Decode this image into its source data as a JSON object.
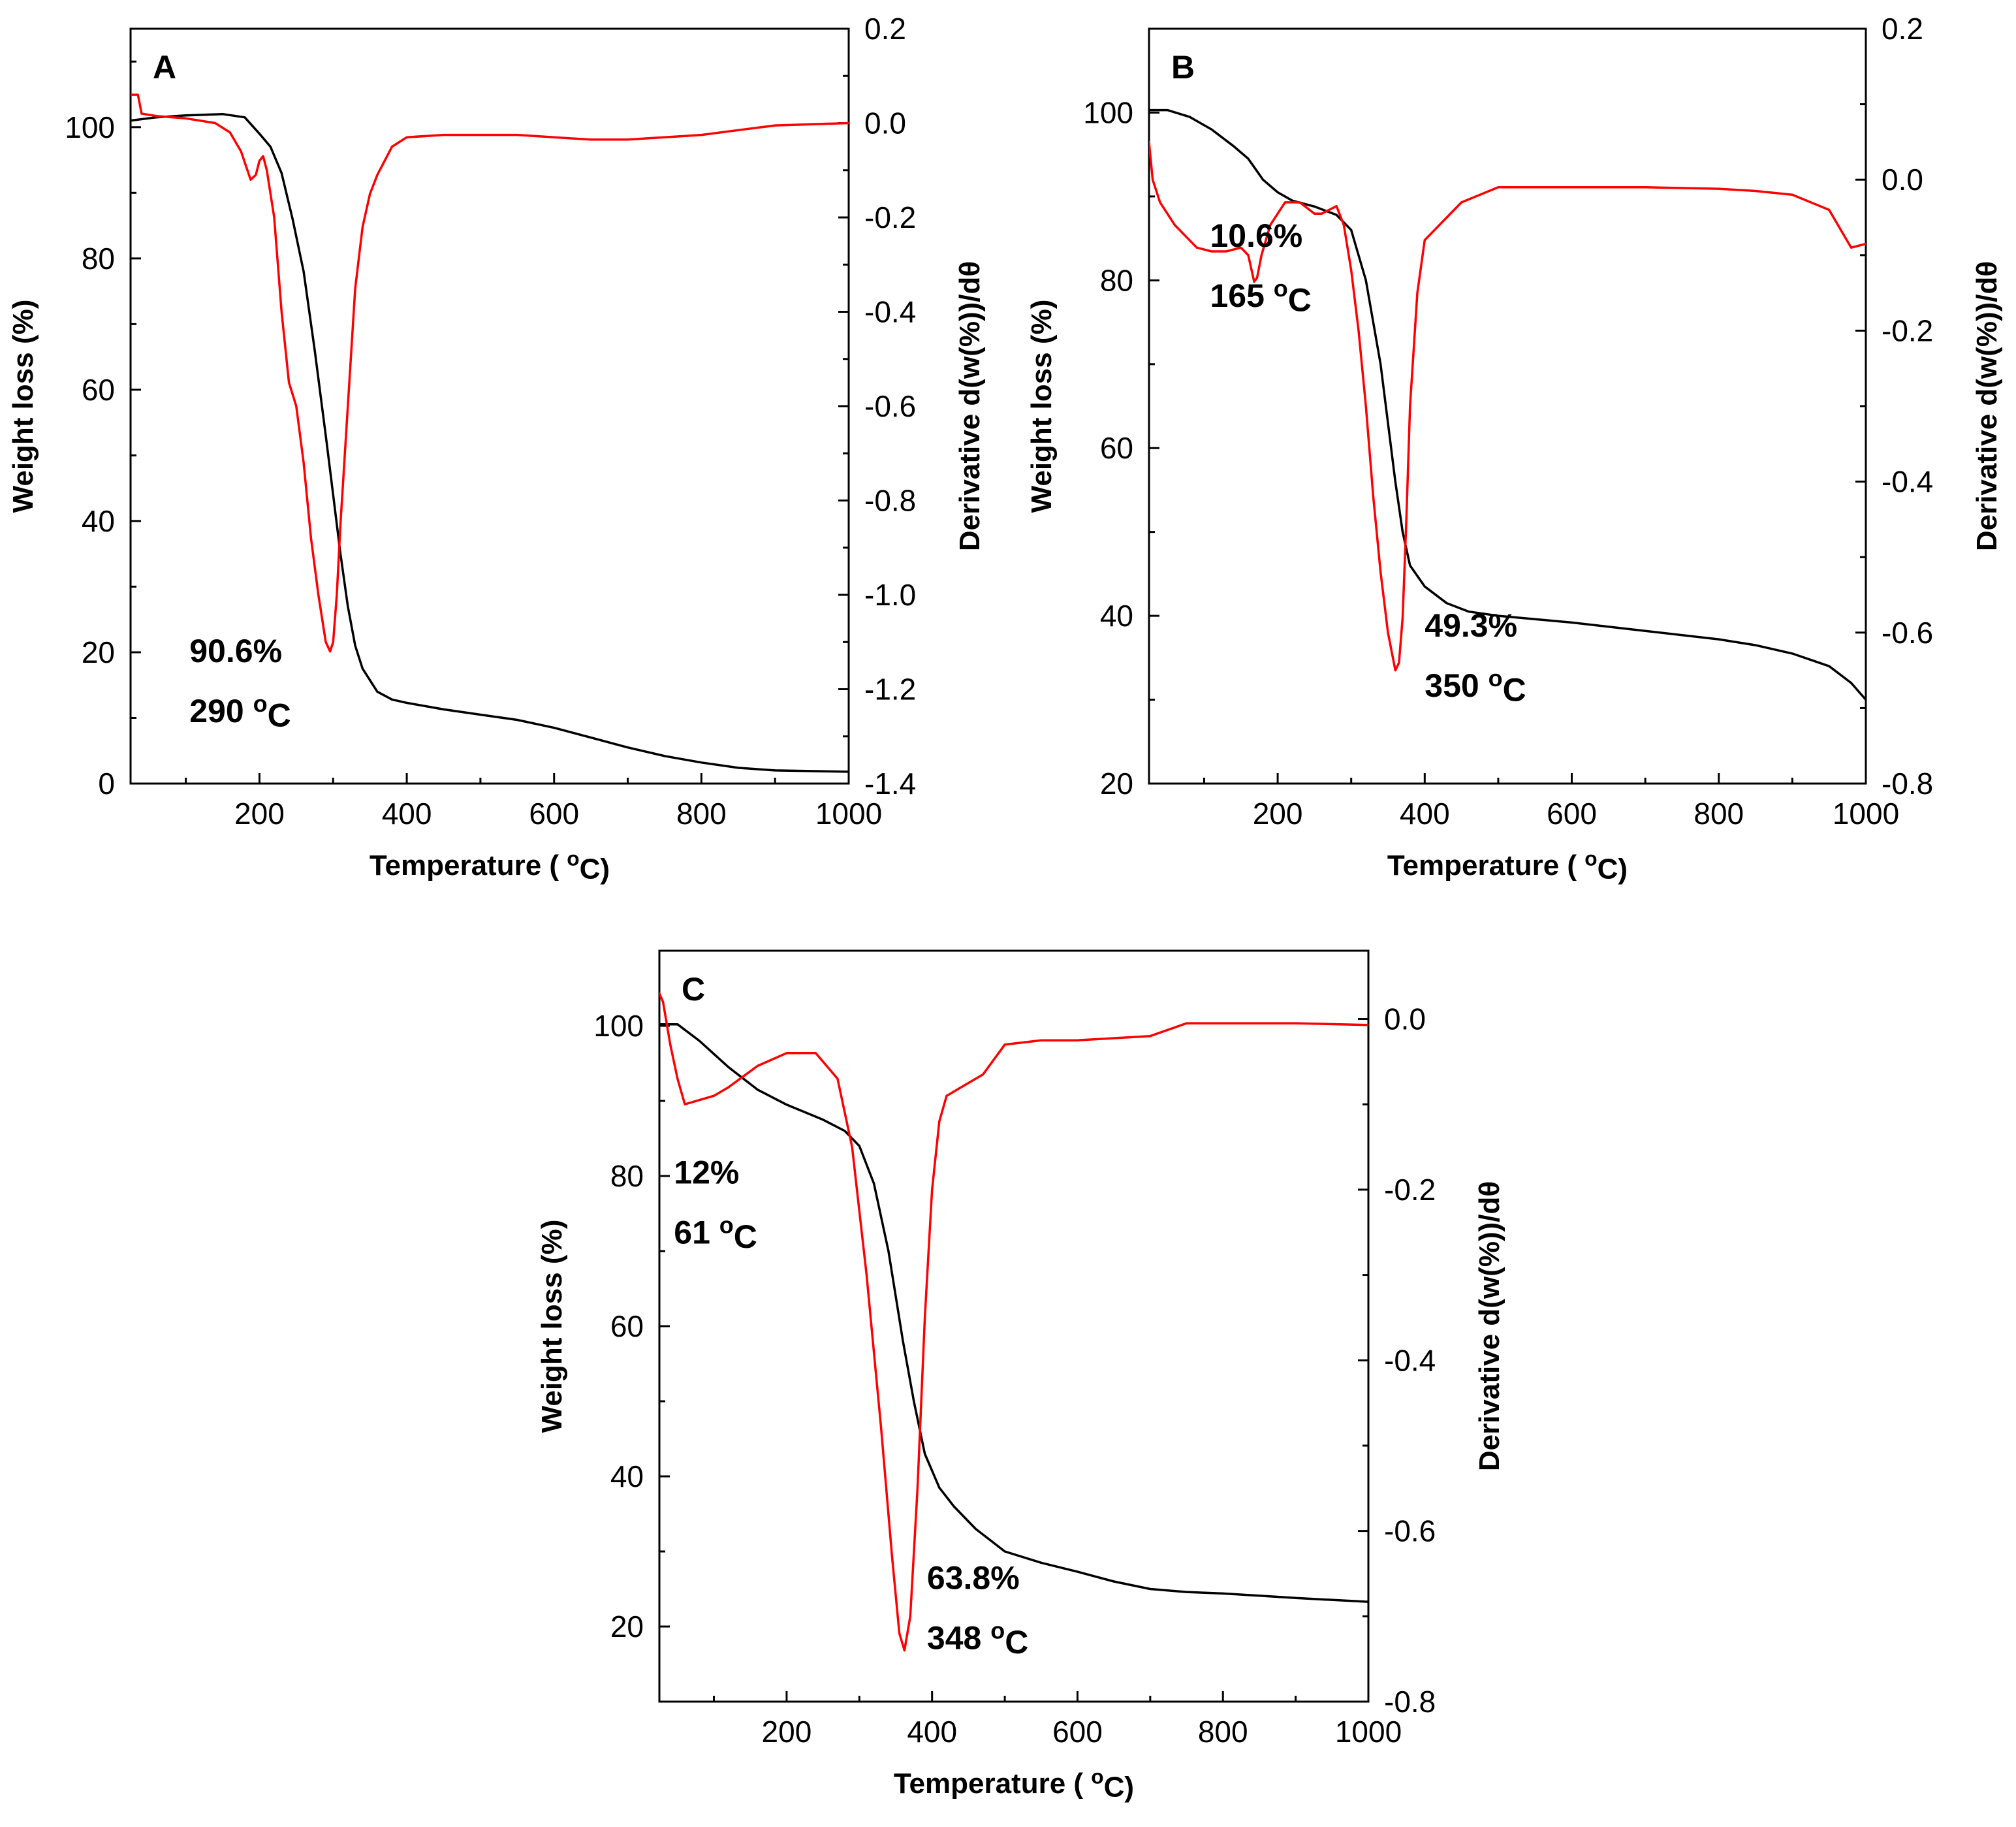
{
  "colors": {
    "weight": "#000000",
    "derivative": "#ff0000"
  },
  "chart_data": [
    {
      "panel": "A",
      "type": "line",
      "xlabel": "Temperature ( oC)",
      "ylabel_left": "Weight loss (%)",
      "ylabel_right": "Derivative d(w(%))/dθ",
      "xlim": [
        25,
        1000
      ],
      "ylim_left": [
        0,
        115
      ],
      "ylim_right": [
        -1.4,
        0.2
      ],
      "x_ticks": [
        200,
        400,
        600,
        800,
        1000
      ],
      "x_tick_labels": [
        "200",
        "400",
        "600",
        "800",
        "1000"
      ],
      "y_left_ticks": [
        0,
        20,
        40,
        60,
        80,
        100
      ],
      "y_left_tick_labels": [
        "0",
        "20",
        "40",
        "60",
        "80",
        "100"
      ],
      "y_right_ticks": [
        0.2,
        0.0,
        -0.2,
        -0.4,
        -0.6,
        -0.8,
        -1.0,
        -1.2,
        -1.4
      ],
      "y_right_tick_labels": [
        "0.2",
        "0.0",
        "-0.2",
        "-0.4",
        "-0.6",
        "-0.8",
        "-1.0",
        "-1.2",
        "-1.4"
      ],
      "annotations": [
        {
          "lines": [
            "90.6%",
            "290 oC"
          ],
          "x": 105,
          "y": 18.5
        }
      ],
      "series": [
        {
          "name": "Weight loss",
          "axis": "left",
          "color": "#000000",
          "x": [
            25,
            60,
            100,
            150,
            180,
            200,
            215,
            230,
            245,
            260,
            275,
            290,
            300,
            310,
            320,
            330,
            340,
            360,
            380,
            400,
            450,
            500,
            550,
            600,
            650,
            700,
            750,
            800,
            850,
            900,
            1000
          ],
          "y": [
            101,
            101.5,
            101.8,
            102,
            101.5,
            99,
            97,
            93,
            86,
            78,
            66,
            53,
            44,
            35,
            27,
            21,
            17.5,
            14,
            12.8,
            12.3,
            11.3,
            10.5,
            9.7,
            8.5,
            7,
            5.5,
            4.2,
            3.2,
            2.4,
            2.0,
            1.8
          ]
        },
        {
          "name": "Derivative",
          "axis": "right",
          "color": "#ff0000",
          "x": [
            25,
            35,
            40,
            60,
            100,
            140,
            160,
            175,
            188,
            195,
            200,
            205,
            210,
            220,
            230,
            240,
            250,
            260,
            270,
            280,
            290,
            296,
            300,
            305,
            310,
            320,
            330,
            340,
            350,
            360,
            380,
            400,
            450,
            500,
            550,
            600,
            650,
            700,
            750,
            800,
            850,
            900,
            1000
          ],
          "y": [
            0.06,
            0.06,
            0.02,
            0.015,
            0.01,
            0.0,
            -0.02,
            -0.06,
            -0.12,
            -0.11,
            -0.08,
            -0.07,
            -0.1,
            -0.2,
            -0.4,
            -0.55,
            -0.6,
            -0.72,
            -0.88,
            -1.0,
            -1.1,
            -1.12,
            -1.1,
            -1.0,
            -0.85,
            -0.6,
            -0.35,
            -0.22,
            -0.15,
            -0.11,
            -0.05,
            -0.03,
            -0.025,
            -0.025,
            -0.025,
            -0.03,
            -0.035,
            -0.035,
            -0.03,
            -0.025,
            -0.015,
            -0.005,
            0.0
          ]
        }
      ]
    },
    {
      "panel": "B",
      "type": "line",
      "xlabel": "Temperature ( oC)",
      "ylabel_left": "Weight loss (%)",
      "ylabel_right": "Derivative d(w(%))/dθ",
      "xlim": [
        25,
        1000
      ],
      "ylim_left": [
        20,
        110
      ],
      "ylim_right": [
        -0.8,
        0.2
      ],
      "x_ticks": [
        200,
        400,
        600,
        800,
        1000
      ],
      "x_tick_labels": [
        "200",
        "400",
        "600",
        "800",
        "1000"
      ],
      "y_left_ticks": [
        20,
        40,
        60,
        80,
        100
      ],
      "y_left_tick_labels": [
        "20",
        "40",
        "60",
        "80",
        "100"
      ],
      "y_right_ticks": [
        0.2,
        0.0,
        -0.2,
        -0.4,
        -0.6,
        -0.8
      ],
      "y_right_tick_labels": [
        "0.2",
        "0.0",
        "-0.2",
        "-0.4",
        "-0.6",
        "-0.8"
      ],
      "annotations": [
        {
          "lines": [
            "10.6%",
            "165 oC"
          ],
          "x": 108,
          "y": 84
        },
        {
          "lines": [
            "49.3%",
            "350 oC"
          ],
          "x": 400,
          "y": 37.5
        }
      ],
      "series": [
        {
          "name": "Weight loss",
          "axis": "left",
          "color": "#000000",
          "x": [
            25,
            50,
            80,
            110,
            140,
            160,
            180,
            200,
            220,
            250,
            280,
            300,
            320,
            340,
            350,
            360,
            370,
            380,
            400,
            430,
            460,
            500,
            600,
            700,
            800,
            850,
            900,
            950,
            980,
            1000
          ],
          "y": [
            100.3,
            100.3,
            99.5,
            98,
            96,
            94.5,
            92,
            90.5,
            89.5,
            88.8,
            87.8,
            86,
            80,
            70,
            63,
            56,
            50,
            46,
            43.5,
            41.5,
            40.5,
            40,
            39.2,
            38.2,
            37.2,
            36.5,
            35.5,
            34,
            32,
            30
          ]
        },
        {
          "name": "Derivative",
          "axis": "right",
          "color": "#ff0000",
          "x": [
            25,
            30,
            40,
            60,
            90,
            110,
            130,
            150,
            160,
            168,
            172,
            178,
            190,
            210,
            230,
            250,
            260,
            270,
            280,
            290,
            300,
            310,
            320,
            330,
            340,
            350,
            360,
            365,
            370,
            375,
            380,
            390,
            400,
            420,
            450,
            500,
            550,
            600,
            700,
            800,
            850,
            900,
            950,
            980,
            1000
          ],
          "y": [
            0.05,
            0.0,
            -0.03,
            -0.06,
            -0.09,
            -0.095,
            -0.095,
            -0.09,
            -0.1,
            -0.135,
            -0.13,
            -0.1,
            -0.06,
            -0.03,
            -0.03,
            -0.045,
            -0.045,
            -0.04,
            -0.035,
            -0.06,
            -0.12,
            -0.2,
            -0.3,
            -0.42,
            -0.52,
            -0.6,
            -0.65,
            -0.64,
            -0.58,
            -0.45,
            -0.3,
            -0.15,
            -0.08,
            -0.06,
            -0.03,
            -0.01,
            -0.01,
            -0.01,
            -0.01,
            -0.012,
            -0.015,
            -0.02,
            -0.04,
            -0.09,
            -0.085
          ]
        }
      ]
    },
    {
      "panel": "C",
      "type": "line",
      "xlabel": "Temperature ( oC)",
      "ylabel_left": "Weight loss (%)",
      "ylabel_right": "Derivative d(w(%))/dθ",
      "xlim": [
        25,
        1000
      ],
      "ylim_left": [
        10,
        110
      ],
      "ylim_right": [
        -0.8,
        0.08
      ],
      "x_ticks": [
        200,
        400,
        600,
        800,
        1000
      ],
      "x_tick_labels": [
        "200",
        "400",
        "600",
        "800",
        "1000"
      ],
      "y_left_ticks": [
        20,
        40,
        60,
        80,
        100
      ],
      "y_left_tick_labels": [
        "20",
        "40",
        "60",
        "80",
        "100"
      ],
      "y_right_ticks": [
        0.0,
        -0.2,
        -0.4,
        -0.6,
        -0.8
      ],
      "y_right_tick_labels": [
        "0.0",
        "-0.2",
        "-0.4",
        "-0.6",
        "-0.8"
      ],
      "annotations": [
        {
          "lines": [
            "12%",
            "61 oC"
          ],
          "x": 45,
          "y": 79
        },
        {
          "lines": [
            "63.8%",
            "348 oC"
          ],
          "x": 393,
          "y": 25
        }
      ],
      "series": [
        {
          "name": "Weight loss",
          "axis": "left",
          "color": "#000000",
          "x": [
            25,
            50,
            80,
            120,
            160,
            200,
            250,
            280,
            300,
            320,
            340,
            360,
            375,
            390,
            410,
            430,
            460,
            500,
            550,
            600,
            650,
            700,
            750,
            800,
            850,
            900,
            1000
          ],
          "y": [
            100.2,
            100.2,
            98,
            94.5,
            91.5,
            89.5,
            87.5,
            86,
            84,
            79,
            70,
            58,
            50,
            43,
            38.5,
            36,
            33,
            30,
            28.5,
            27.3,
            26,
            25,
            24.6,
            24.4,
            24.1,
            23.8,
            23.3
          ]
        },
        {
          "name": "Derivative",
          "axis": "right",
          "color": "#ff0000",
          "x": [
            25,
            30,
            40,
            50,
            60,
            80,
            100,
            120,
            160,
            200,
            240,
            270,
            290,
            310,
            330,
            345,
            355,
            362,
            370,
            380,
            390,
            400,
            410,
            420,
            440,
            470,
            500,
            550,
            600,
            700,
            750,
            800,
            900,
            1000
          ],
          "y": [
            0.03,
            0.02,
            -0.03,
            -0.07,
            -0.1,
            -0.095,
            -0.09,
            -0.08,
            -0.055,
            -0.04,
            -0.04,
            -0.07,
            -0.15,
            -0.3,
            -0.48,
            -0.63,
            -0.72,
            -0.74,
            -0.7,
            -0.55,
            -0.35,
            -0.2,
            -0.12,
            -0.09,
            -0.08,
            -0.065,
            -0.03,
            -0.025,
            -0.025,
            -0.02,
            -0.005,
            -0.005,
            -0.005,
            -0.007
          ]
        }
      ]
    }
  ]
}
